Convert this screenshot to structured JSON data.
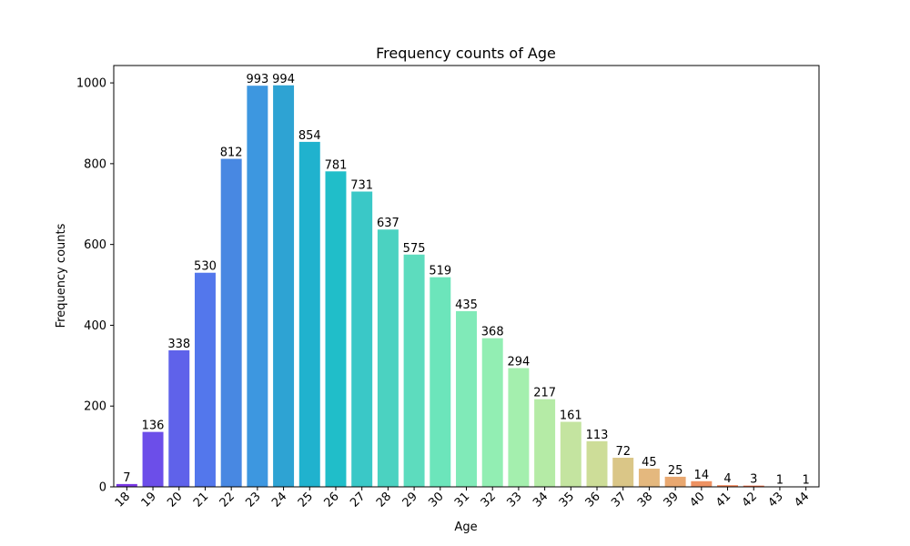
{
  "chart_data": {
    "type": "bar",
    "title": "Frequency counts of Age",
    "xlabel": "Age",
    "ylabel": "Frequency counts",
    "categories": [
      "18",
      "19",
      "20",
      "21",
      "22",
      "23",
      "24",
      "25",
      "26",
      "27",
      "28",
      "29",
      "30",
      "31",
      "32",
      "33",
      "34",
      "35",
      "36",
      "37",
      "38",
      "39",
      "40",
      "41",
      "42",
      "43",
      "44"
    ],
    "values": [
      7,
      136,
      338,
      530,
      812,
      993,
      994,
      854,
      781,
      731,
      637,
      575,
      519,
      435,
      368,
      294,
      217,
      161,
      113,
      72,
      45,
      25,
      14,
      4,
      3,
      1,
      1
    ],
    "colors": [
      "#7a38e6",
      "#6c4ee9",
      "#5f62ea",
      "#5377ec",
      "#4888e2",
      "#3d97e0",
      "#2ea3d3",
      "#20b2ce",
      "#20bec9",
      "#3ac8c7",
      "#4bd2c1",
      "#5ddcbe",
      "#6ce5bb",
      "#80eab8",
      "#92eeb3",
      "#a4efae",
      "#b5eba6",
      "#c4e4a0",
      "#cddd98",
      "#dac687",
      "#e4b87e",
      "#e9a870",
      "#ee9262",
      "#f38051",
      "#f56c44",
      "#f95836",
      "#fb4426"
    ],
    "yticks": [
      0,
      200,
      400,
      600,
      800,
      1000
    ],
    "ylim": [
      0,
      1043
    ],
    "grid": false,
    "legend": "none"
  }
}
